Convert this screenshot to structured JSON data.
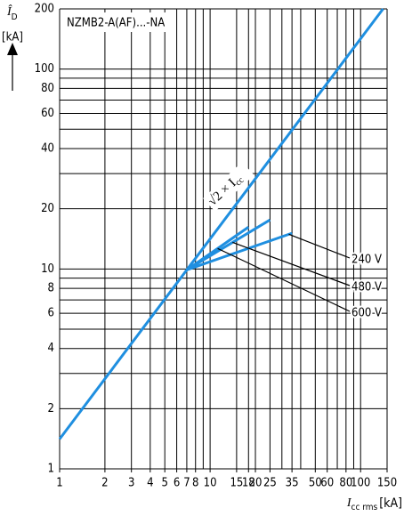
{
  "chart_data": {
    "type": "line",
    "title": "NZMB2-A(AF)...-NA",
    "x_label": {
      "symbol": "I",
      "sub": "cc rms",
      "unit": "[kA]"
    },
    "y_label": {
      "symbol": "Î",
      "sub": "D",
      "unit": "[kA]"
    },
    "log_x": true,
    "log_y": true,
    "grid": true,
    "xlim": [
      1,
      150
    ],
    "ylim": [
      1,
      200
    ],
    "xticks": [
      1,
      2,
      3,
      4,
      5,
      6,
      7,
      8,
      10,
      15,
      18,
      20,
      25,
      35,
      50,
      60,
      80,
      100,
      150
    ],
    "yticks": [
      1,
      2,
      4,
      6,
      8,
      10,
      20,
      40,
      60,
      80,
      100,
      200
    ],
    "xgrid": [
      1,
      2,
      3,
      4,
      5,
      6,
      7,
      8,
      9,
      10,
      15,
      18,
      20,
      25,
      30,
      35,
      40,
      50,
      60,
      70,
      80,
      90,
      100,
      150
    ],
    "ygrid": [
      1,
      2,
      3,
      4,
      5,
      6,
      7,
      8,
      9,
      10,
      20,
      30,
      40,
      50,
      60,
      70,
      80,
      90,
      100,
      200
    ],
    "annotation": {
      "text": "√2 × I",
      "sub": "cc"
    },
    "series": [
      {
        "color": "#1f8fe0",
        "x": [
          1,
          141
        ],
        "values": [
          1.41,
          200
        ]
      },
      {
        "name": "240 V",
        "color": "#1f8fe0",
        "x": [
          7,
          35
        ],
        "values": [
          9.9,
          15.1
        ]
      },
      {
        "name": "480 V",
        "color": "#1f8fe0",
        "x": [
          7,
          25
        ],
        "values": [
          9.9,
          17.6
        ]
      },
      {
        "name": "600 V",
        "color": "#1f8fe0",
        "x": [
          7,
          18
        ],
        "values": [
          9.9,
          16.2
        ]
      }
    ]
  }
}
